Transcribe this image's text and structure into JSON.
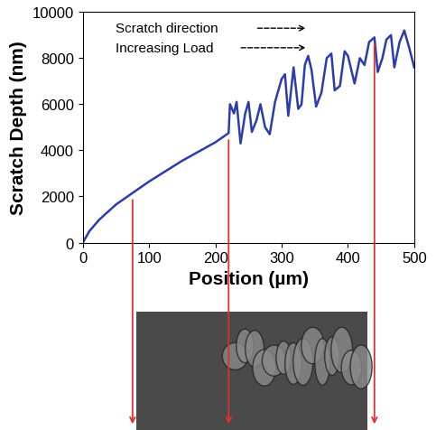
{
  "chart_data": {
    "type": "line",
    "x_label": "Position (µm)",
    "y_label": "Scratch Depth (nm)",
    "annotations": [
      "Scratch direction",
      "Increasing Load"
    ],
    "x": [
      0,
      10,
      25,
      50,
      75,
      100,
      125,
      150,
      175,
      200,
      220,
      222,
      228,
      232,
      238,
      245,
      250,
      255,
      262,
      268,
      275,
      282,
      290,
      295,
      300,
      305,
      310,
      318,
      325,
      330,
      335,
      340,
      345,
      352,
      360,
      368,
      375,
      380,
      388,
      395,
      400,
      405,
      410,
      418,
      425,
      432,
      440,
      445,
      452,
      458,
      465,
      470,
      478,
      485,
      492,
      500
    ],
    "values": [
      0,
      500,
      1000,
      1650,
      2150,
      2650,
      3100,
      3550,
      3950,
      4350,
      4750,
      6000,
      5600,
      6100,
      4300,
      5600,
      6100,
      4800,
      5300,
      6000,
      5000,
      4700,
      6100,
      6600,
      7100,
      7300,
      5500,
      7600,
      5800,
      6000,
      7700,
      8100,
      7500,
      5900,
      6500,
      8000,
      8200,
      6600,
      6800,
      8300,
      8100,
      7500,
      6900,
      8000,
      7700,
      8700,
      8900,
      7400,
      8000,
      8800,
      9000,
      7600,
      8700,
      9200,
      8500,
      7600
    ],
    "color": "#2b3cae",
    "marked_positions": [
      75,
      220,
      440
    ],
    "xlim": [
      0,
      500
    ],
    "xticks": [
      0,
      100,
      200,
      300,
      400,
      500
    ],
    "ylim": [
      0,
      10000
    ],
    "yticks": [
      0,
      2000,
      4000,
      6000,
      8000,
      10000
    ],
    "grid": false
  }
}
